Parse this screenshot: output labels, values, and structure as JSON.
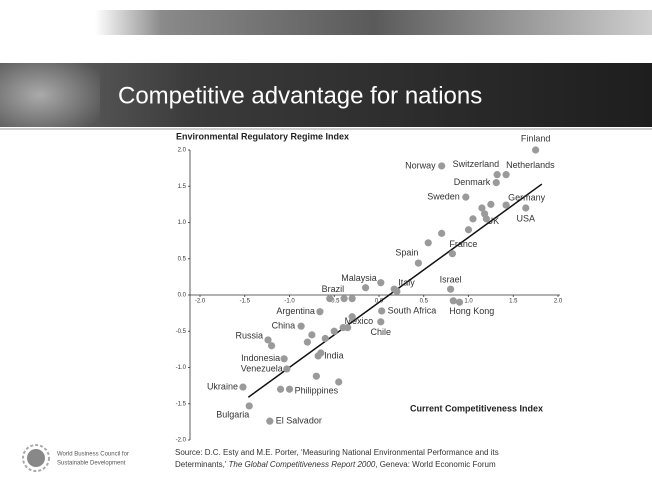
{
  "slide": {
    "title": "Competitive advantage for nations"
  },
  "logo": {
    "line1": "World Business Council for",
    "line2": "Sustainable Development"
  },
  "source": {
    "before": "Source: D.C. Esty and M.E. Porter, ‘Measuring National Environmental Performance and its",
    "line2_before": "Determinants,’",
    "report": "The Global Competitiveness Report 2000",
    "after": ", Geneva: World Economic Forum"
  },
  "chart_data": {
    "type": "scatter",
    "ylabel": "Environmental Regulatory Regime Index",
    "xlabel": "Current Competitiveness Index",
    "color": "#9a9a9a",
    "x": [
      1.75,
      0.7,
      1.32,
      1.42,
      1.31,
      0.97,
      1.42,
      1.64,
      1.18,
      0.82,
      0.44,
      0.8,
      0.17,
      0.02,
      -0.39,
      -0.66,
      -0.87,
      0.03,
      0.83,
      -0.35,
      0.02,
      -0.68,
      -1.24,
      -1.06,
      -1.03,
      -1.52,
      -0.7,
      -1.45,
      -1.22,
      -1.1,
      -1.0,
      -0.45,
      -0.6,
      -0.5,
      -0.8,
      -0.75,
      -0.4,
      -0.3,
      -0.3,
      -0.55,
      0.55,
      0.7,
      1.0,
      1.05,
      1.2,
      1.15,
      1.25,
      -0.65,
      0.2,
      0.9,
      -0.15,
      -1.2
    ],
    "y": [
      2.0,
      1.78,
      1.66,
      1.66,
      1.55,
      1.35,
      1.24,
      1.2,
      1.12,
      0.57,
      0.44,
      0.08,
      0.08,
      0.17,
      -0.05,
      -0.23,
      -0.43,
      -0.22,
      -0.08,
      -0.45,
      -0.37,
      -0.84,
      -0.62,
      -0.88,
      -1.02,
      -1.27,
      -1.12,
      -1.53,
      -1.74,
      -1.3,
      -1.3,
      -1.2,
      -0.6,
      -0.5,
      -0.65,
      -0.55,
      -0.45,
      -0.3,
      -0.05,
      -0.05,
      0.72,
      0.85,
      0.9,
      1.05,
      1.05,
      1.2,
      1.25,
      -0.8,
      0.05,
      -0.1,
      0.1,
      -0.7
    ],
    "labels": [
      "Finland",
      "Norway",
      "Switzerland",
      "Netherlands",
      "Denmark",
      "Sweden",
      "Germany",
      "USA",
      "UK",
      "France",
      "Spain",
      "Israel",
      "Italy",
      "Malaysia",
      "Brazil",
      "Argentina",
      "China",
      "South Africa",
      "Hong Kong",
      "Mexico",
      "Chile",
      "India",
      "Russia",
      "Indonesia",
      "Venezuela",
      "Ukraine",
      "Philippines",
      "Bulgaria",
      "El Salvador",
      null,
      null,
      null,
      null,
      null,
      null,
      null,
      null,
      null,
      null,
      null,
      null,
      null,
      null,
      null,
      null,
      null,
      null,
      null,
      null,
      null,
      null,
      null
    ],
    "trendline": {
      "x": [
        -1.46,
        1.82
      ],
      "y": [
        -1.41,
        1.53
      ]
    },
    "xlim": [
      -2.0,
      2.0
    ],
    "ylim": [
      -2.0,
      2.0
    ],
    "xticks": [
      {
        "value": -2,
        "label": "-2.0"
      },
      {
        "value": -1.5,
        "label": "-1.5"
      },
      {
        "value": -1,
        "label": "-1.0"
      },
      {
        "value": -0.5,
        "label": "-0.5"
      },
      {
        "value": 0,
        "label": "0.0"
      },
      {
        "value": 0.5,
        "label": "0.5"
      },
      {
        "value": 1,
        "label": "1.0"
      },
      {
        "value": 1.5,
        "label": "1.5"
      },
      {
        "value": 2,
        "label": "2.0"
      }
    ],
    "yticks": [
      {
        "value": 2,
        "label": "2.0"
      },
      {
        "value": 1.5,
        "label": "1.5"
      },
      {
        "value": 1,
        "label": "1.0"
      },
      {
        "value": 0.5,
        "label": "0.5"
      },
      {
        "value": 0,
        "label": "0.0"
      },
      {
        "value": -0.5,
        "label": "-0.5"
      },
      {
        "value": -1,
        "label": "-1.0"
      },
      {
        "value": -1.5,
        "label": "-1.5"
      },
      {
        "value": -2,
        "label": "-2.0"
      }
    ]
  }
}
